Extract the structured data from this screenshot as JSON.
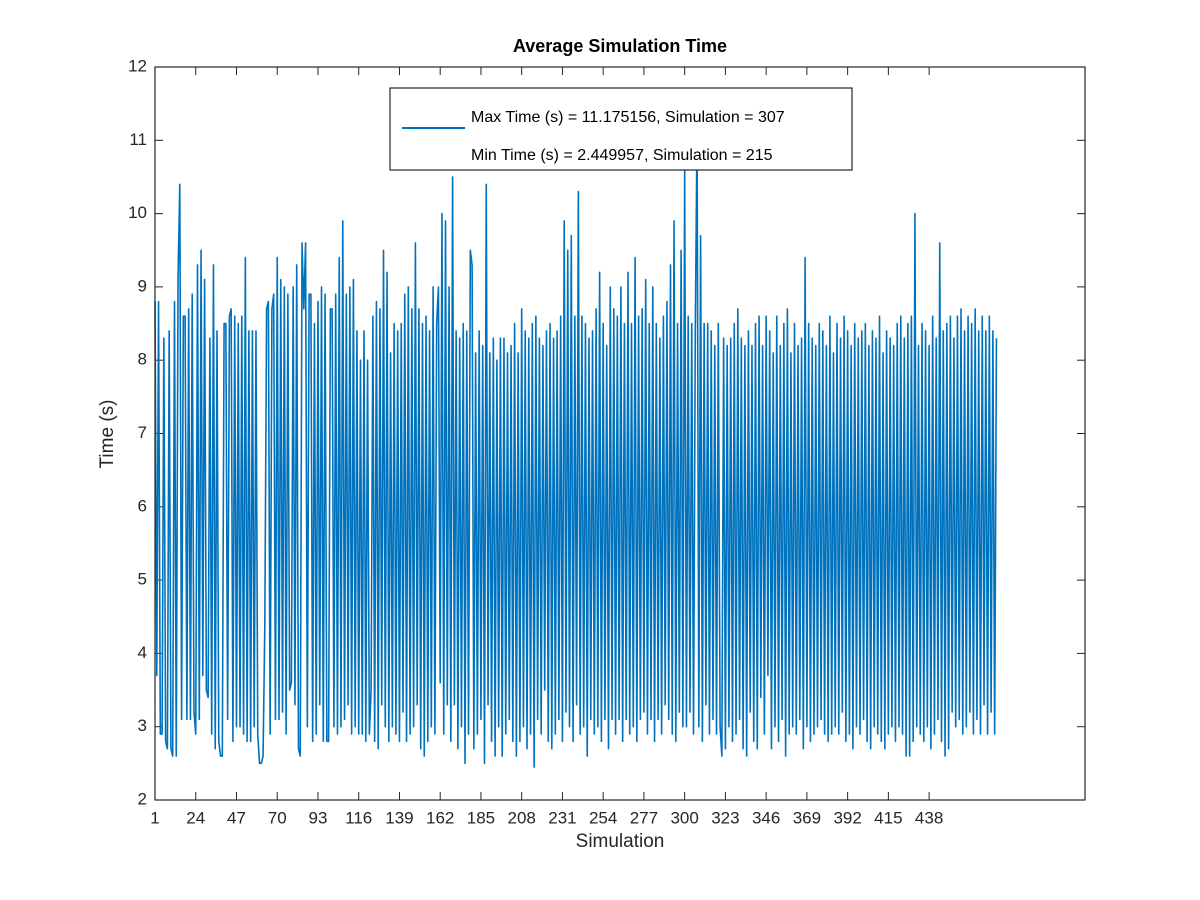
{
  "chart_data": {
    "type": "line",
    "title": "Average Simulation Time",
    "x_label": "Simulation",
    "y_label": "Time (s)",
    "xlim": [
      1,
      526
    ],
    "ylim": [
      2,
      12
    ],
    "xticks": [
      1,
      24,
      47,
      70,
      93,
      116,
      139,
      162,
      185,
      208,
      231,
      254,
      277,
      300,
      323,
      346,
      369,
      392,
      415,
      438
    ],
    "yticks": [
      2,
      3,
      4,
      5,
      6,
      7,
      8,
      9,
      10,
      11,
      12
    ],
    "grid": false,
    "legend": "top",
    "annotations": [
      "Min Time (s) = 2.449957, Simulation = 215"
    ],
    "series": [
      {
        "name": "Max Time (s) = 11.175156, Simulation = 307",
        "color": "#0072bd",
        "values": [
          8.8,
          3.7,
          8.8,
          2.9,
          2.9,
          8.3,
          2.8,
          2.7,
          8.4,
          2.7,
          2.6,
          8.8,
          2.6,
          9.1,
          10.4,
          3.1,
          8.6,
          8.6,
          3.1,
          8.7,
          3.1,
          8.9,
          3.2,
          2.9,
          9.3,
          3.1,
          9.5,
          3.7,
          9.1,
          3.5,
          3.4,
          8.3,
          2.9,
          9.3,
          2.7,
          8.4,
          2.8,
          2.6,
          2.6,
          8.5,
          8.5,
          3.1,
          8.6,
          8.7,
          2.8,
          8.6,
          3.0,
          8.5,
          3.0,
          8.6,
          2.9,
          9.4,
          2.8,
          8.4,
          2.8,
          8.4,
          3.0,
          8.4,
          2.9,
          2.5,
          2.5,
          2.6,
          4.4,
          8.7,
          8.8,
          2.9,
          8.7,
          8.9,
          3.1,
          9.4,
          3.1,
          9.1,
          3.2,
          9.0,
          2.9,
          8.9,
          3.5,
          3.6,
          9.0,
          3.3,
          9.3,
          2.7,
          2.6,
          9.6,
          8.7,
          9.6,
          3.0,
          8.9,
          8.9,
          2.8,
          8.5,
          2.9,
          8.8,
          3.3,
          9.0,
          2.8,
          8.9,
          2.8,
          2.8,
          8.7,
          8.7,
          3.0,
          8.9,
          2.9,
          9.4,
          3.0,
          9.9,
          3.1,
          8.9,
          3.3,
          9.0,
          2.9,
          9.1,
          3.0,
          8.4,
          2.9,
          8.0,
          2.9,
          8.4,
          2.8,
          8.0,
          2.9,
          3.5,
          8.6,
          2.8,
          8.8,
          2.7,
          8.7,
          3.3,
          9.5,
          3.0,
          9.2,
          2.8,
          8.1,
          3.0,
          8.5,
          2.9,
          8.4,
          2.8,
          8.5,
          3.2,
          8.9,
          2.8,
          9.0,
          2.9,
          8.7,
          3.0,
          9.6,
          3.3,
          8.7,
          2.7,
          8.5,
          2.6,
          8.6,
          2.8,
          8.4,
          3.0,
          9.0,
          2.9,
          8.5,
          9.0,
          3.6,
          10.0,
          2.9,
          9.9,
          3.3,
          9.0,
          2.8,
          10.5,
          3.3,
          8.4,
          2.7,
          8.3,
          3.0,
          8.5,
          2.5,
          8.4,
          2.9,
          9.5,
          9.3,
          2.7,
          8.1,
          2.9,
          8.4,
          3.1,
          8.2,
          2.5,
          10.4,
          3.3,
          8.1,
          2.8,
          8.3,
          2.6,
          8.0,
          3.0,
          8.3,
          2.6,
          8.3,
          2.9,
          8.1,
          3.1,
          8.2,
          2.8,
          8.5,
          2.6,
          8.1,
          2.8,
          8.7,
          3.0,
          8.4,
          2.7,
          8.3,
          2.9,
          8.5,
          2.449957,
          8.6,
          3.1,
          8.3,
          2.9,
          8.2,
          3.5,
          8.4,
          2.8,
          8.5,
          2.7,
          8.3,
          2.9,
          8.4,
          3.1,
          8.6,
          2.8,
          9.9,
          3.2,
          9.5,
          3.0,
          9.7,
          2.8,
          8.6,
          3.3,
          10.3,
          2.9,
          8.6,
          3.0,
          8.5,
          2.6,
          8.3,
          3.1,
          8.4,
          2.9,
          8.7,
          3.0,
          9.2,
          2.8,
          8.5,
          3.1,
          8.2,
          2.7,
          9.0,
          3.1,
          8.7,
          2.9,
          8.6,
          3.1,
          9.0,
          2.8,
          8.5,
          3.1,
          9.2,
          2.9,
          8.5,
          3.0,
          9.4,
          2.8,
          8.6,
          3.1,
          8.7,
          3.2,
          9.1,
          2.9,
          8.5,
          3.1,
          9.0,
          2.8,
          8.5,
          3.1,
          8.3,
          2.9,
          8.6,
          3.3,
          8.8,
          3.1,
          9.3,
          2.9,
          9.9,
          2.8,
          8.5,
          3.2,
          9.5,
          3.0,
          10.6,
          3.0,
          8.6,
          3.2,
          8.5,
          2.9,
          8.4,
          11.175156,
          3.0,
          9.7,
          2.8,
          8.5,
          3.3,
          8.5,
          2.9,
          8.4,
          3.1,
          8.2,
          2.9,
          8.5,
          3.0,
          2.6,
          8.3,
          2.7,
          8.2,
          3.0,
          8.3,
          2.8,
          8.5,
          2.9,
          8.7,
          3.1,
          8.3,
          2.7,
          8.2,
          2.6,
          8.4,
          3.2,
          8.2,
          2.8,
          8.5,
          2.7,
          8.6,
          3.4,
          8.2,
          2.9,
          8.6,
          3.7,
          8.4,
          2.7,
          8.1,
          3.0,
          8.6,
          2.8,
          8.2,
          3.1,
          8.5,
          2.6,
          8.7,
          2.9,
          8.1,
          3.0,
          8.5,
          2.9,
          8.2,
          3.1,
          8.3,
          2.7,
          9.4,
          3.0,
          8.5,
          2.8,
          8.3,
          2.9,
          8.2,
          3.0,
          8.5,
          3.1,
          8.4,
          2.9,
          8.2,
          2.8,
          8.6,
          2.9,
          8.1,
          3.0,
          8.5,
          2.9,
          8.3,
          3.2,
          8.6,
          2.8,
          8.4,
          2.9,
          8.2,
          2.7,
          8.5,
          3.0,
          8.3,
          2.9,
          8.4,
          3.1,
          8.5,
          2.8,
          8.2,
          2.7,
          8.4,
          3.0,
          8.3,
          2.9,
          8.6,
          2.8,
          8.1,
          2.7,
          8.4,
          2.9,
          8.3,
          3.0,
          8.2,
          2.8,
          8.5,
          3.0,
          8.6,
          2.9,
          8.3,
          2.6,
          8.5,
          2.6,
          8.6,
          2.8,
          10.0,
          3.0,
          8.2,
          2.9,
          8.5,
          2.8,
          8.4,
          3.0,
          8.2,
          2.7,
          8.6,
          2.9,
          8.3,
          3.1,
          9.6,
          2.8,
          8.4,
          2.6,
          8.5,
          2.7,
          8.6,
          3.2,
          8.3,
          3.0,
          8.6,
          3.1,
          8.7,
          2.9,
          8.4,
          3.0,
          8.6,
          3.2,
          8.5,
          2.9,
          8.7,
          3.1,
          8.4,
          2.9,
          8.6,
          3.3,
          8.4,
          2.9,
          8.6,
          3.2,
          8.4,
          2.9,
          8.3
        ]
      }
    ]
  }
}
